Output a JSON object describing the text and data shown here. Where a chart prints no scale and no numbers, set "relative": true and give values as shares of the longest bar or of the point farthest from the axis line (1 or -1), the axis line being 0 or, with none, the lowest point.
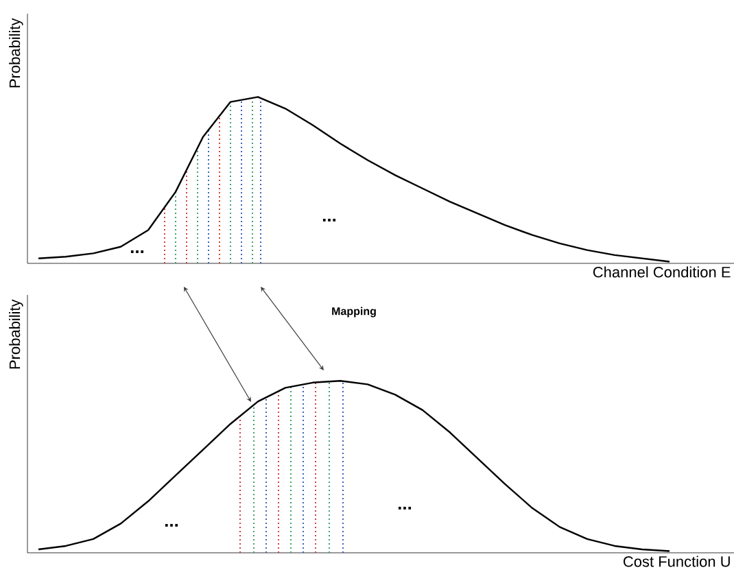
{
  "chart_data": [
    {
      "type": "line",
      "relative": true,
      "ylabel": "Probability",
      "xlabel": "Channel Condition E",
      "categories": [
        null,
        null,
        null,
        null,
        null,
        null,
        null,
        null,
        null,
        null,
        null,
        null,
        null,
        null,
        null,
        null,
        null,
        null,
        null,
        null,
        null,
        null,
        null,
        null
      ],
      "series": [
        {
          "color": "#000000",
          "values": [
            0.03,
            0.04,
            0.06,
            0.1,
            0.2,
            0.43,
            0.76,
            0.97,
            1.0,
            0.93,
            0.83,
            0.72,
            0.62,
            0.53,
            0.45,
            0.37,
            0.3,
            0.23,
            0.17,
            0.12,
            0.08,
            0.05,
            0.03,
            0.01
          ]
        }
      ],
      "annotations": [
        "...",
        "..."
      ]
    },
    {
      "type": "line",
      "relative": true,
      "ylabel": "Probability",
      "xlabel": "Cost Function U",
      "categories": [
        null,
        null,
        null,
        null,
        null,
        null,
        null,
        null,
        null,
        null,
        null,
        null,
        null,
        null,
        null,
        null,
        null,
        null,
        null,
        null,
        null,
        null,
        null,
        null
      ],
      "series": [
        {
          "color": "#000000",
          "values": [
            0.02,
            0.04,
            0.08,
            0.17,
            0.3,
            0.45,
            0.6,
            0.75,
            0.88,
            0.96,
            0.99,
            1.0,
            0.98,
            0.92,
            0.83,
            0.7,
            0.55,
            0.4,
            0.26,
            0.15,
            0.08,
            0.04,
            0.02,
            0.01
          ]
        }
      ],
      "annotations": [
        "...",
        "...",
        "Mapping"
      ]
    }
  ]
}
